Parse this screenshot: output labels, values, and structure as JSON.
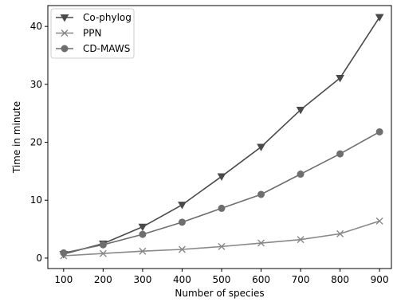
{
  "chart_data": {
    "type": "line",
    "title": "",
    "xlabel": "Number of species",
    "ylabel": "Time in minute",
    "x": [
      100,
      200,
      300,
      400,
      500,
      600,
      700,
      800,
      900
    ],
    "xticks": [
      100,
      200,
      300,
      400,
      500,
      600,
      700,
      800,
      900
    ],
    "yticks": [
      0,
      10,
      20,
      30,
      40
    ],
    "xlim": [
      60,
      930
    ],
    "ylim": [
      -1.8,
      43.6
    ],
    "grid": false,
    "legend_position": "top-left",
    "series": [
      {
        "name": "Co-phylog",
        "marker": "triangle-down",
        "color": "#4a4a4a",
        "values": [
          0.7,
          2.5,
          5.4,
          9.2,
          14.1,
          19.2,
          25.6,
          31.1,
          41.6
        ]
      },
      {
        "name": "PPN",
        "marker": "x",
        "color": "#888888",
        "values": [
          0.4,
          0.8,
          1.2,
          1.5,
          2.0,
          2.6,
          3.2,
          4.2,
          6.4
        ]
      },
      {
        "name": "CD-MAWS",
        "marker": "circle",
        "color": "#6e6e6e",
        "values": [
          0.9,
          2.3,
          4.1,
          6.2,
          8.6,
          11.0,
          14.5,
          18.0,
          21.8
        ]
      }
    ]
  }
}
